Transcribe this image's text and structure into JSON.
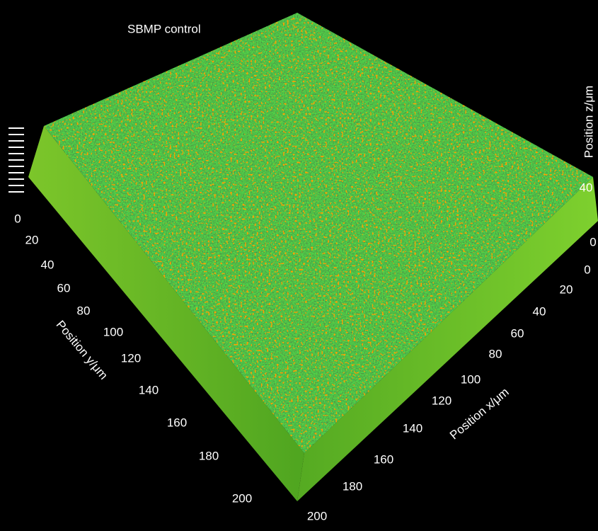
{
  "title": "SBMP control",
  "axes": {
    "x": {
      "label": "Position x/μm",
      "ticks": [
        0,
        20,
        40,
        60,
        80,
        100,
        120,
        140,
        160,
        180,
        200
      ]
    },
    "y": {
      "label": "Position y/μm",
      "ticks": [
        0,
        20,
        40,
        60,
        80,
        100,
        120,
        140,
        160,
        180,
        200
      ]
    },
    "z": {
      "label": "Position z/μm",
      "ticks": [
        0,
        40
      ]
    }
  }
}
